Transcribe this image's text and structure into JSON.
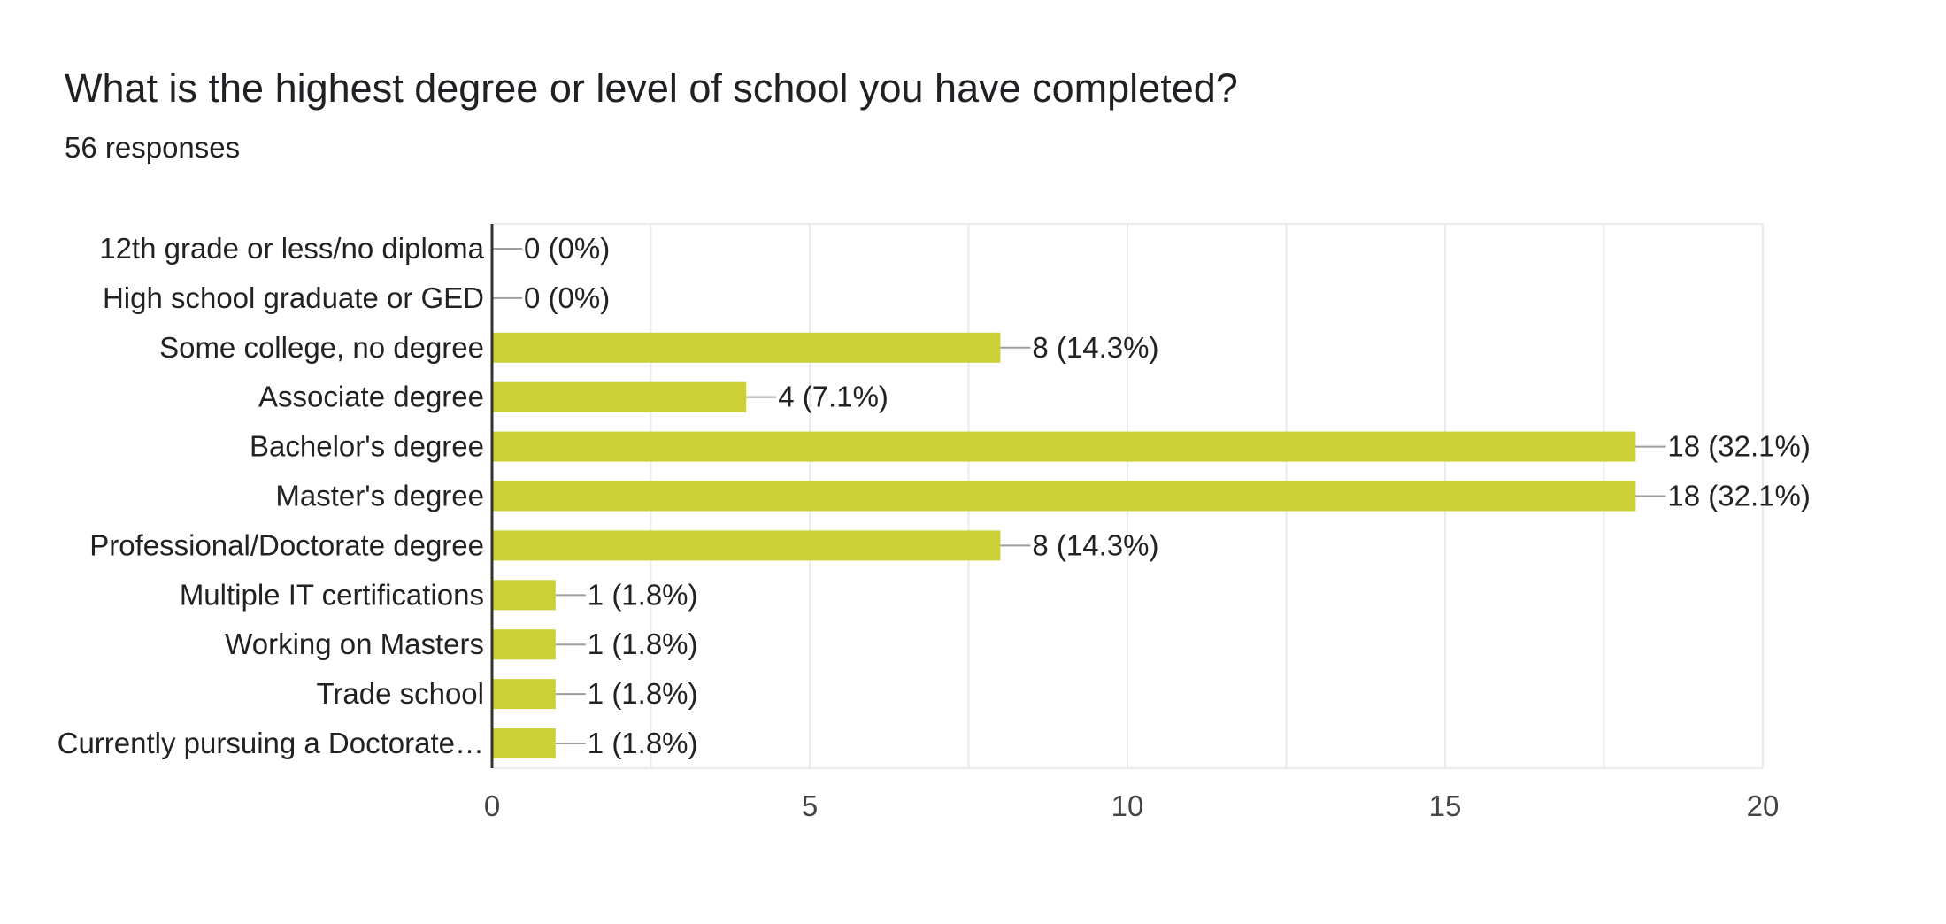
{
  "chart_data": {
    "type": "bar",
    "orientation": "horizontal",
    "title": "What is the highest degree or level of school you have completed?",
    "subtitle": "56 responses",
    "categories": [
      "12th grade or less/no diploma",
      "High school graduate or GED",
      "Some college, no degree",
      "Associate degree",
      "Bachelor's degree",
      "Master's degree",
      "Professional/Doctorate degree",
      "Multiple IT certifications",
      "Working on Masters",
      "Trade school",
      "Currently pursuing a Doctorate…"
    ],
    "values": [
      0,
      0,
      8,
      4,
      18,
      18,
      8,
      1,
      1,
      1,
      1
    ],
    "data_labels": [
      "0 (0%)",
      "0 (0%)",
      "8 (14.3%)",
      "4 (7.1%)",
      "18 (32.1%)",
      "18 (32.1%)",
      "8 (14.3%)",
      "1 (1.8%)",
      "1 (1.8%)",
      "1 (1.8%)",
      "1 (1.8%)"
    ],
    "xlim": [
      0,
      20
    ],
    "xticks": [
      0,
      5,
      10,
      15,
      20
    ],
    "grid": true,
    "bar_color": "#cbd037"
  }
}
